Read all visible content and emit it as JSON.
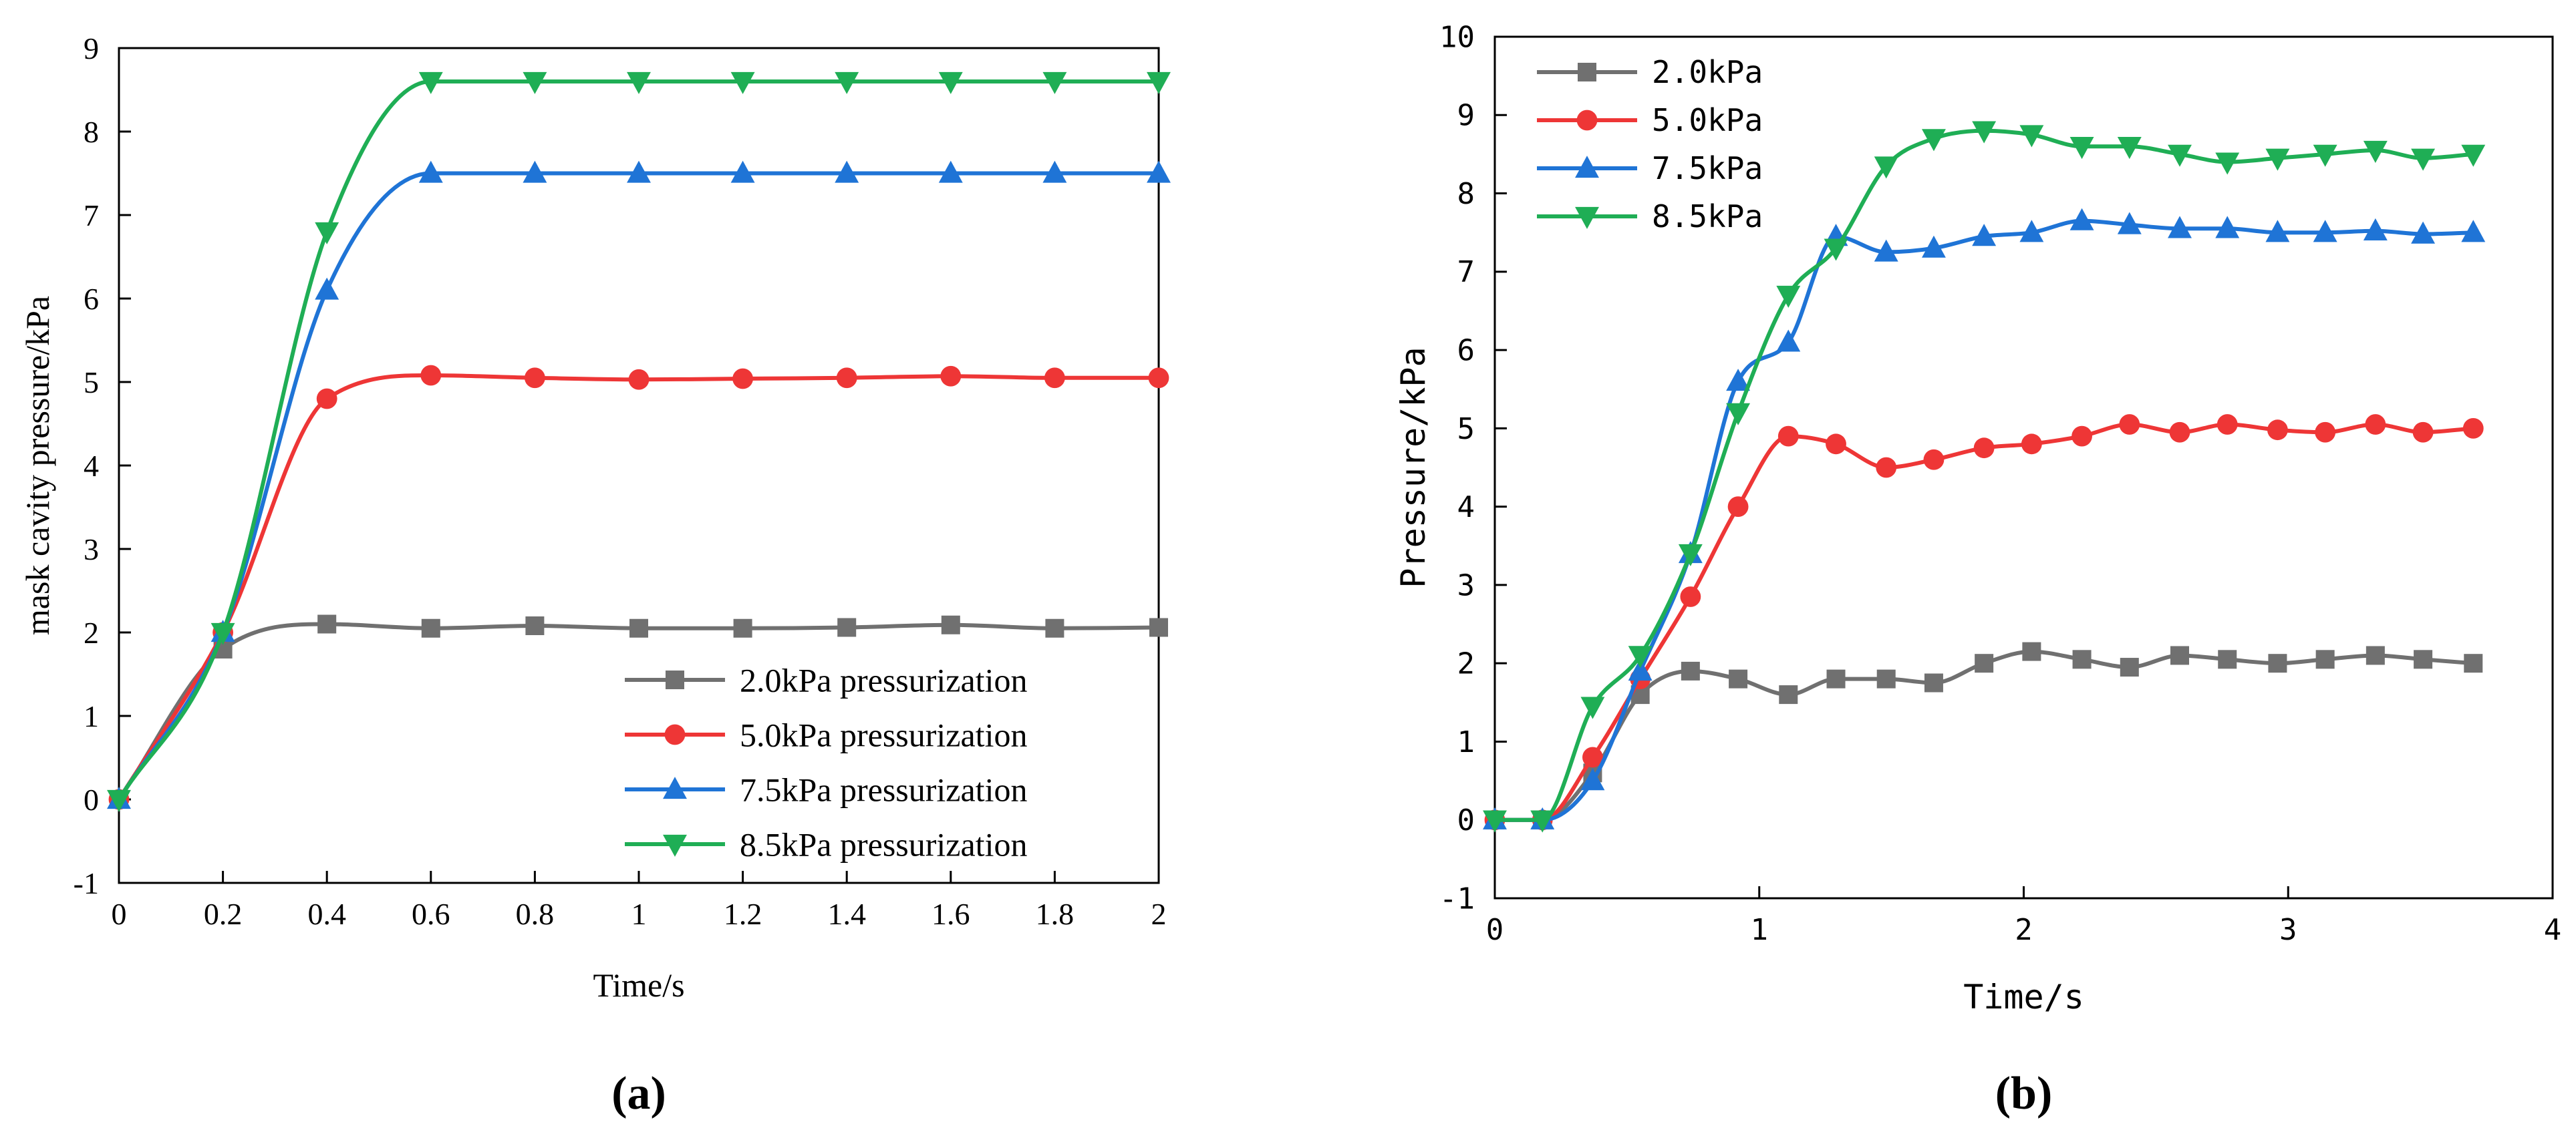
{
  "chart_data": [
    {
      "type": "line",
      "panel_label": "(a)",
      "xlabel": "Time/s",
      "ylabel": "mask cavity pressure/kPa",
      "xlim": [
        0,
        2
      ],
      "ylim": [
        -1,
        9
      ],
      "xticks": [
        0,
        0.2,
        0.4,
        0.6,
        0.8,
        1,
        1.2,
        1.4,
        1.6,
        1.8,
        2
      ],
      "xtick_labels": [
        "0",
        "0.2",
        "0.4",
        "0.6",
        "0.8",
        "1",
        "1.2",
        "1.4",
        "1.6",
        "1.8",
        "2"
      ],
      "yticks": [
        -1,
        0,
        1,
        2,
        3,
        4,
        5,
        6,
        7,
        8,
        9
      ],
      "ytick_labels": [
        "-1",
        "0",
        "1",
        "2",
        "3",
        "4",
        "5",
        "6",
        "7",
        "8",
        "9"
      ],
      "grid": false,
      "legend_position": "bottom-right",
      "x": [
        0,
        0.2,
        0.4,
        0.6,
        0.8,
        1.0,
        1.2,
        1.4,
        1.6,
        1.8,
        2.0
      ],
      "series": [
        {
          "name": "2.0kPa pressurization",
          "color": "#707070",
          "marker": "square",
          "values": [
            0,
            1.8,
            2.1,
            2.05,
            2.08,
            2.05,
            2.05,
            2.06,
            2.09,
            2.05,
            2.06
          ]
        },
        {
          "name": "5.0kPa pressurization",
          "color": "#ee3636",
          "marker": "circle",
          "values": [
            0,
            2.0,
            4.8,
            5.08,
            5.05,
            5.03,
            5.04,
            5.05,
            5.07,
            5.05,
            5.05
          ]
        },
        {
          "name": "7.5kPa pressurization",
          "color": "#1f74d6",
          "marker": "triangle-up",
          "values": [
            0,
            2.0,
            6.1,
            7.5,
            7.5,
            7.5,
            7.5,
            7.5,
            7.5,
            7.5,
            7.5
          ]
        },
        {
          "name": "8.5kPa pressurization",
          "color": "#1fae55",
          "marker": "triangle-down",
          "values": [
            0,
            2.0,
            6.8,
            8.6,
            8.6,
            8.6,
            8.6,
            8.6,
            8.6,
            8.6,
            8.6
          ]
        }
      ]
    },
    {
      "type": "line",
      "panel_label": "(b)",
      "xlabel": "Time/s",
      "ylabel": "Pressure/kPa",
      "xlim": [
        0,
        4
      ],
      "ylim": [
        -1,
        10
      ],
      "xticks": [
        0,
        1,
        2,
        3,
        4
      ],
      "xtick_labels": [
        "0",
        "1",
        "2",
        "3",
        "4"
      ],
      "yticks": [
        -1,
        0,
        1,
        2,
        3,
        4,
        5,
        6,
        7,
        8,
        9,
        10
      ],
      "ytick_labels": [
        "-1",
        "0",
        "1",
        "2",
        "3",
        "4",
        "5",
        "6",
        "7",
        "8",
        "9",
        "10"
      ],
      "grid": false,
      "legend_position": "top-left",
      "series": [
        {
          "name": "2.0kPa",
          "color": "#707070",
          "marker": "square",
          "x": [
            0,
            0.18,
            0.37,
            0.55,
            0.74,
            0.92,
            1.11,
            1.29,
            1.48,
            1.66,
            1.85,
            2.03,
            2.22,
            2.4,
            2.59,
            2.77,
            2.96,
            3.14,
            3.33,
            3.51,
            3.7
          ],
          "values": [
            0,
            0,
            0.6,
            1.6,
            1.9,
            1.8,
            1.6,
            1.8,
            1.8,
            1.75,
            2.0,
            2.15,
            2.05,
            1.95,
            2.1,
            2.05,
            2.0,
            2.05,
            2.1,
            2.05,
            2.0
          ]
        },
        {
          "name": "5.0kPa",
          "color": "#ee3636",
          "marker": "circle",
          "x": [
            0,
            0.18,
            0.37,
            0.55,
            0.74,
            0.92,
            1.11,
            1.29,
            1.48,
            1.66,
            1.85,
            2.03,
            2.22,
            2.4,
            2.59,
            2.77,
            2.96,
            3.14,
            3.33,
            3.51,
            3.7
          ],
          "values": [
            0,
            0,
            0.8,
            1.8,
            2.85,
            4.0,
            4.9,
            4.8,
            4.5,
            4.6,
            4.75,
            4.8,
            4.9,
            5.05,
            4.95,
            5.05,
            4.98,
            4.95,
            5.05,
            4.95,
            5.0
          ]
        },
        {
          "name": "7.5kPa",
          "color": "#1f74d6",
          "marker": "triangle-up",
          "x": [
            0,
            0.18,
            0.37,
            0.55,
            0.74,
            0.92,
            1.11,
            1.29,
            1.48,
            1.66,
            1.85,
            2.03,
            2.22,
            2.4,
            2.59,
            2.77,
            2.96,
            3.14,
            3.33,
            3.51,
            3.7
          ],
          "values": [
            0,
            0,
            0.5,
            1.9,
            3.4,
            5.6,
            6.1,
            7.45,
            7.25,
            7.3,
            7.45,
            7.5,
            7.65,
            7.6,
            7.55,
            7.55,
            7.5,
            7.5,
            7.52,
            7.48,
            7.5
          ]
        },
        {
          "name": "8.5kPa",
          "color": "#1fae55",
          "marker": "triangle-down",
          "x": [
            0,
            0.18,
            0.37,
            0.55,
            0.74,
            0.92,
            1.11,
            1.29,
            1.48,
            1.66,
            1.85,
            2.03,
            2.22,
            2.4,
            2.59,
            2.77,
            2.96,
            3.14,
            3.33,
            3.51,
            3.7
          ],
          "values": [
            0,
            0,
            1.45,
            2.1,
            3.4,
            5.2,
            6.7,
            7.3,
            8.35,
            8.7,
            8.8,
            8.75,
            8.6,
            8.6,
            8.5,
            8.4,
            8.45,
            8.5,
            8.55,
            8.45,
            8.5
          ]
        }
      ]
    }
  ]
}
